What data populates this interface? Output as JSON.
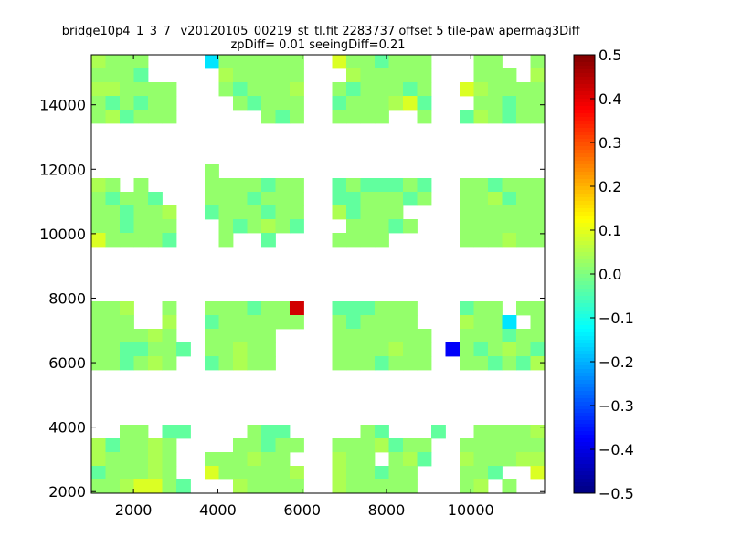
{
  "chart_data": {
    "type": "heatmap",
    "title_line1": "_bridge10p4_1_3_7_ v20120105_00219_st_tl.fit 2283737 offset 5 tile-paw apermag3Diff",
    "title_line2": "zpDiff= 0.01 seeingDiff=0.21",
    "xlim": [
      1000,
      11750
    ],
    "ylim": [
      1950,
      15550
    ],
    "x_ticks": [
      2000,
      4000,
      6000,
      8000,
      10000
    ],
    "y_ticks": [
      2000,
      4000,
      6000,
      8000,
      10000,
      12000,
      14000
    ],
    "colorbar": {
      "colormap": "jet",
      "vmin": -0.5,
      "vmax": 0.5,
      "ticks": [
        0.5,
        0.4,
        0.3,
        0.2,
        0.1,
        0.0,
        -0.1,
        -0.2,
        -0.3,
        -0.4,
        -0.5
      ],
      "tick_labels": [
        "0.5",
        "0.4",
        "0.3",
        "0.2",
        "0.1",
        "0.0",
        "−0.1",
        "−0.2",
        "−0.3",
        "−0.4",
        "−0.5"
      ]
    },
    "grid_columns": 32,
    "grid_rows_count": 32,
    "value_codes": {
      ".": null,
      "g": 0.02,
      "c": -0.03,
      "l": 0.045,
      "y": 0.09,
      "B": -0.15,
      "b": -0.38,
      "r": 0.42
    },
    "rows_top_to_bottom": [
      "lggg....Bgggggg..yggcggg...gg..g",
      "gggc.....lggggg...lggggg...ggg.l",
      "llgggg...gcgggl..gcgggcg..ylgggg",
      "gcgcgg....gcggg..cggglyc...ggcgg",
      "glcggg......gcg..gggg..g..clgcgg",
      "................................",
      "................................",
      "................................",
      "........g.......................",
      "lg.g....ggggcgg..cgcccgc..ggcggg",
      "gcggc...gggcggg..ccgggcg..gglcgg",
      "ggcggl..cgggcgg..lcggg....gggggg",
      "ggcggg...gcglgc...gggcg...gggggg",
      "yggggc...g..c....gggg.....ggglgg",
      "................................",
      "................................",
      "................................",
      "................................",
      "ggl..g..gggcggr..cccggg...cgg.gg",
      "ggg..l..cgggggg..gcgggg...lggB.g",
      "gggglg..ggggg....ggggggg..gggcgg",
      "ggccggc.gglgg....gggglgg.bgcglgc",
      "ggcglg..cglgg....gggcggg..ggcgcl",
      "................................",
      "................................",
      "................................",
      "................................",
      "..gg.cc....gcc.....gc...c..ggggl",
      "lcgglg....ggcgg..ggglcgg..gggggg",
      "lggglg..ggglgg...lgg.glc..lgggll",
      "cggglg..ygggggl..lggcgg...ggc..y",
      "gglyygc...lgggg..lggggg...gl.g.."
    ]
  }
}
